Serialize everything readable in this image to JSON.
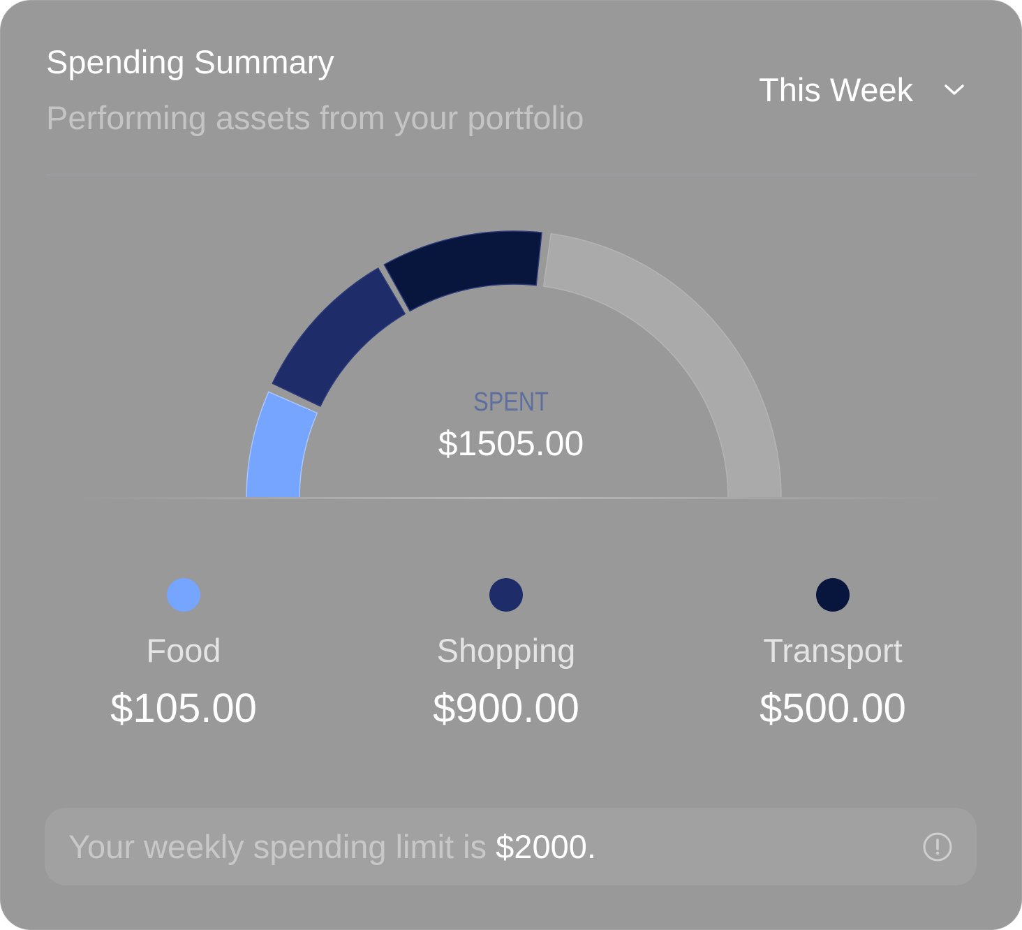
{
  "header": {
    "title": "Spending Summary",
    "subtitle": "Performing assets from your portfolio",
    "period": "This Week",
    "period_icon": "chevron-down-icon"
  },
  "chart_data": {
    "type": "gauge",
    "center_label": "SPENT",
    "center_value": "$1505.00",
    "limit": 2000,
    "series": [
      {
        "name": "Food",
        "value": 105,
        "display": "$105.00",
        "color": "#75a5ff"
      },
      {
        "name": "Shopping",
        "value": 900,
        "display": "$900.00",
        "color": "#1e2d69"
      },
      {
        "name": "Transport",
        "value": 500,
        "display": "$500.00",
        "color": "#08153d"
      }
    ],
    "remaining_color": "#aaaaaa"
  },
  "footer": {
    "text": "Your weekly spending limit is ",
    "amount": "$2000.",
    "icon": "info-icon"
  }
}
